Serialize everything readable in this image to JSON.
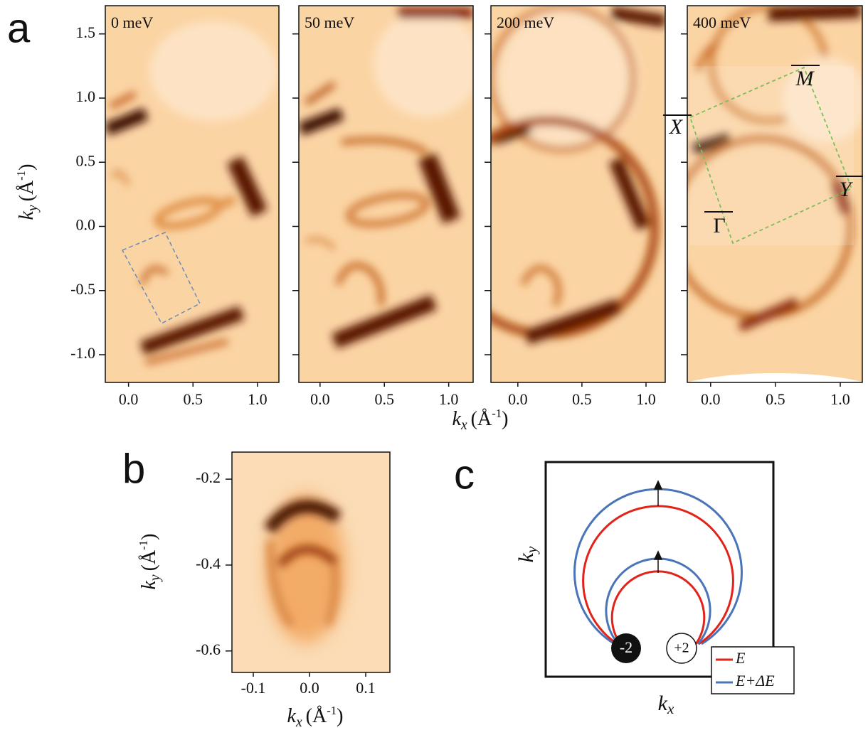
{
  "panel_a": {
    "label": "a",
    "y_axis": {
      "symbol": "k",
      "subscript": "y",
      "unit": "(Å",
      "exponent": "-1",
      "close": ")"
    },
    "x_axis": {
      "symbol": "k",
      "subscript": "x",
      "unit": "(Å",
      "exponent": "-1",
      "close": ")"
    },
    "ylim": [
      -1.216,
      1.72
    ],
    "yticks": [
      1.5,
      {
        "value": 1,
        "label": "1.0"
      },
      0.5,
      {
        "value": 0,
        "label": "0.0"
      },
      -0.5,
      {
        "value": -1,
        "label": "-1.0"
      }
    ],
    "maps": [
      {
        "title": "0 meV",
        "xlim": [
          -0.18,
          1.166
        ],
        "xticks": [
          {
            "value": 0,
            "label": "0.0"
          },
          0.5,
          {
            "value": 1,
            "label": "1.0"
          }
        ]
      },
      {
        "title": "50 meV",
        "xlim": [
          -0.165,
          1.19
        ],
        "xticks": [
          {
            "value": 0,
            "label": "0.0"
          },
          0.5,
          {
            "value": 1,
            "label": "1.0"
          }
        ]
      },
      {
        "title": "200 meV",
        "xlim": [
          -0.21,
          1.15
        ],
        "xticks": [
          {
            "value": 0,
            "label": "0.0"
          },
          0.5,
          {
            "value": 1,
            "label": "1.0"
          }
        ]
      },
      {
        "title": "400 meV",
        "xlim": [
          -0.18,
          1.17
        ],
        "xticks": [
          {
            "value": 0,
            "label": "0.0"
          },
          0.5,
          {
            "value": 1,
            "label": "1.0"
          }
        ]
      }
    ],
    "brillouin_zone": {
      "M": "M",
      "X": "X",
      "Y": "Y",
      "Gamma": "Γ"
    }
  },
  "panel_b": {
    "label": "b",
    "y_axis": {
      "symbol": "k",
      "subscript": "y",
      "unit": "(Å",
      "exponent": "-1",
      "close": ")"
    },
    "x_axis": {
      "symbol": "k",
      "subscript": "x",
      "unit": "(Å",
      "exponent": "-1",
      "close": ")"
    },
    "ylim": [
      -0.65,
      -0.137
    ],
    "yticks": [
      -0.2,
      -0.4,
      -0.6
    ],
    "xlim": [
      -0.138,
      0.143
    ],
    "xticks": [
      -0.1,
      {
        "value": 0,
        "label": "0.0"
      },
      0.1
    ]
  },
  "panel_c": {
    "label": "c",
    "y_axis": {
      "symbol": "k",
      "subscript": "y"
    },
    "x_axis": {
      "symbol": "k",
      "subscript": "x"
    },
    "charges": [
      "-2",
      "+2"
    ],
    "legend": [
      {
        "name": "E",
        "color": "#e2231a"
      },
      {
        "name": "E+ΔE",
        "color": "#4a74b8"
      }
    ]
  }
}
